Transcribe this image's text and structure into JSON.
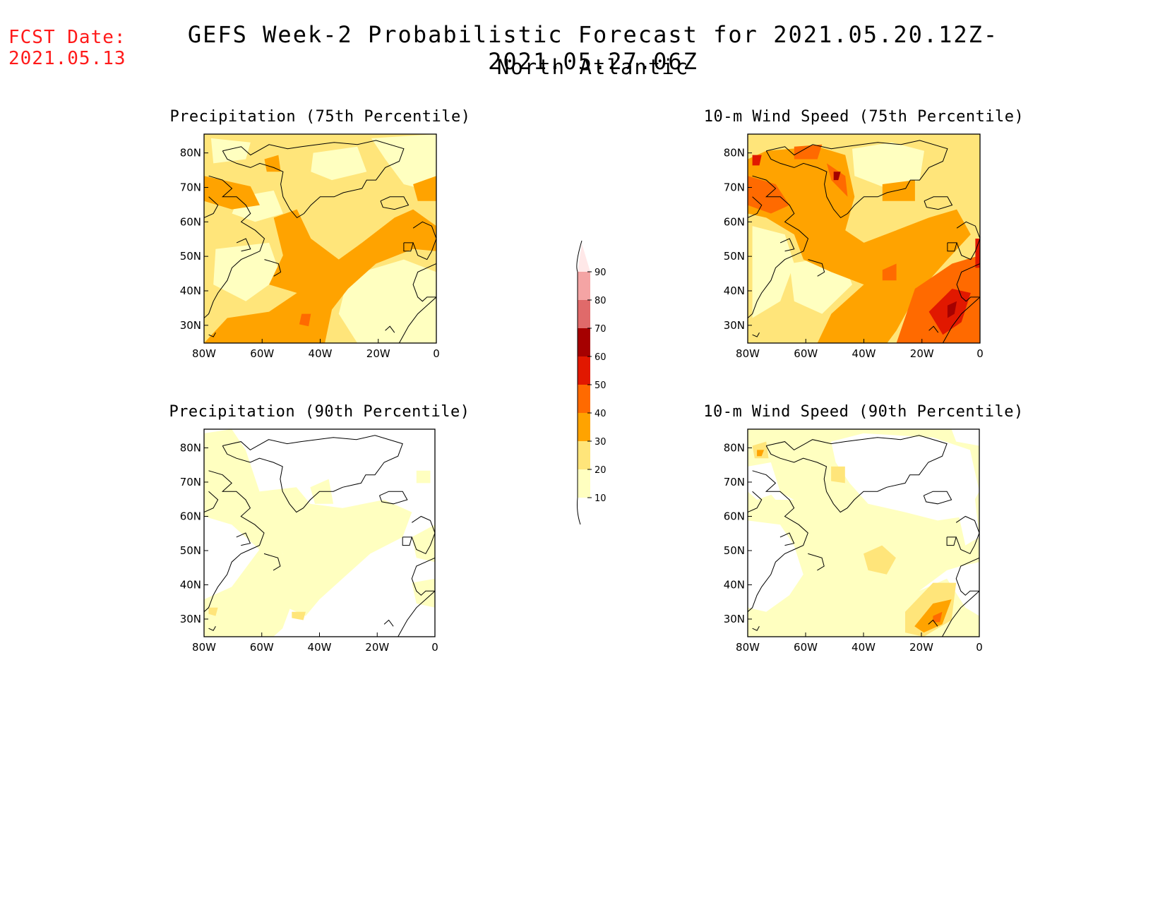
{
  "header": {
    "fcst_label": "FCST Date:",
    "fcst_date": "2021.05.13",
    "title": "GEFS Week-2 Probabilistic Forecast for 2021.05.20.12Z-2021.05.27.06Z",
    "subtitle": "North Atlantic"
  },
  "colors": {
    "label_red": "#ff1a1a",
    "levels": [
      "#ffffc0",
      "#ffe57a",
      "#ffa300",
      "#ff6a00",
      "#e11800",
      "#a50000",
      "#e06a6a",
      "#f4a4a4",
      "#ffe8e8"
    ]
  },
  "axes": {
    "lat_labels": [
      "80N",
      "70N",
      "60N",
      "50N",
      "40N",
      "30N"
    ],
    "lon_labels": [
      "80W",
      "60W",
      "40W",
      "20W",
      "0"
    ]
  },
  "colorbar": {
    "ticks": [
      "10",
      "20",
      "30",
      "40",
      "50",
      "60",
      "70",
      "80",
      "90"
    ]
  },
  "panels": [
    {
      "title": "Precipitation (75th Percentile)",
      "max_level": 3
    },
    {
      "title": "10-m Wind Speed (75th Percentile)",
      "max_level": 6
    },
    {
      "title": "Precipitation (90th Percentile)",
      "max_level": 2
    },
    {
      "title": "10-m Wind Speed (90th Percentile)",
      "max_level": 4
    }
  ]
}
